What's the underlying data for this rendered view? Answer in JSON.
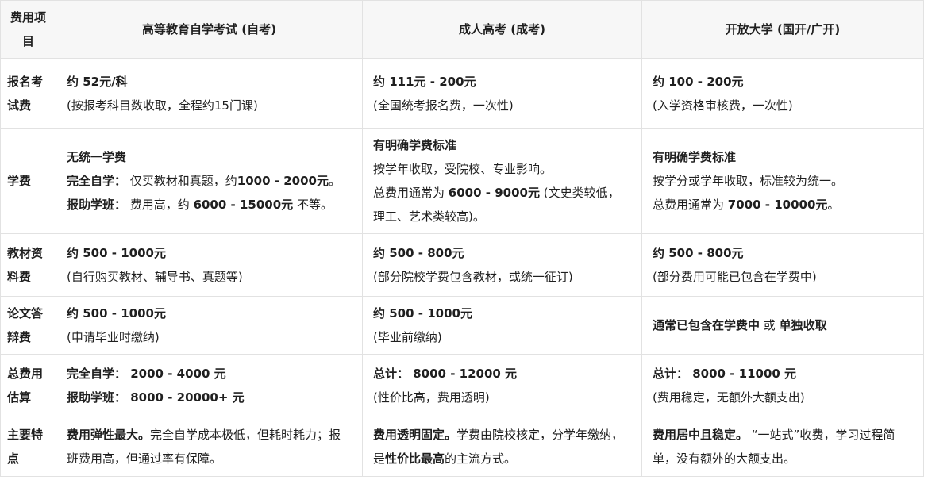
{
  "colors": {
    "header_background": "#f7f7f7",
    "border": "#e2e2e2",
    "text": "#1f1f1f",
    "body_background": "#ffffff"
  },
  "table": {
    "columns": [
      "费用项目",
      "高等教育自学考试 (自考)",
      "成人高考 (成考)",
      "开放大学 (国开/广开)"
    ],
    "rows": [
      {
        "item": "报名考试费",
        "cells": [
          [
            [
              {
                "t": "约 52元/科",
                "b": true
              }
            ],
            [
              {
                "t": "(按报考科目数收取，全程约15门课)",
                "b": false
              }
            ]
          ],
          [
            [
              {
                "t": "约 111元 - 200元",
                "b": true
              }
            ],
            [
              {
                "t": "(全国统考报名费，一次性)",
                "b": false
              }
            ]
          ],
          [
            [
              {
                "t": "约 100 - 200元",
                "b": true
              }
            ],
            [
              {
                "t": "(入学资格审核费，一次性)",
                "b": false
              }
            ]
          ]
        ]
      },
      {
        "item": "学费",
        "cells": [
          [
            [
              {
                "t": "无统一学费",
                "b": true
              }
            ],
            [
              {
                "t": "完全自学：",
                "b": true
              },
              {
                "t": " 仅买教材和真题，约",
                "b": false
              },
              {
                "t": "1000 - 2000元",
                "b": true
              },
              {
                "t": "。",
                "b": false
              }
            ],
            [
              {
                "t": "报助学班：",
                "b": true
              },
              {
                "t": " 费用高，约 ",
                "b": false
              },
              {
                "t": "6000 - 15000元",
                "b": true
              },
              {
                "t": " 不等。",
                "b": false
              }
            ]
          ],
          [
            [
              {
                "t": "有明确学费标准",
                "b": true
              }
            ],
            [
              {
                "t": "按学年收取，受院校、专业影响。",
                "b": false
              }
            ],
            [
              {
                "t": "总费用通常为 ",
                "b": false
              },
              {
                "t": "6000 - 9000元",
                "b": true
              },
              {
                "t": " (文史类较低，理工、艺术类较高)。",
                "b": false
              }
            ]
          ],
          [
            [
              {
                "t": "有明确学费标准",
                "b": true
              }
            ],
            [
              {
                "t": "按学分或学年收取，标准较为统一。",
                "b": false
              }
            ],
            [
              {
                "t": "总费用通常为 ",
                "b": false
              },
              {
                "t": "7000 - 10000元",
                "b": true
              },
              {
                "t": "。",
                "b": false
              }
            ]
          ]
        ]
      },
      {
        "item": "教材资料费",
        "cells": [
          [
            [
              {
                "t": "约 500 - 1000元",
                "b": true
              }
            ],
            [
              {
                "t": "(自行购买教材、辅导书、真题等)",
                "b": false
              }
            ]
          ],
          [
            [
              {
                "t": "约 500 - 800元",
                "b": true
              }
            ],
            [
              {
                "t": "(部分院校学费包含教材，或统一征订)",
                "b": false
              }
            ]
          ],
          [
            [
              {
                "t": "约 500 - 800元",
                "b": true
              }
            ],
            [
              {
                "t": "(部分费用可能已包含在学费中)",
                "b": false
              }
            ]
          ]
        ]
      },
      {
        "item": "论文答辩费",
        "cells": [
          [
            [
              {
                "t": "约 500 - 1000元",
                "b": true
              }
            ],
            [
              {
                "t": "(申请毕业时缴纳)",
                "b": false
              }
            ]
          ],
          [
            [
              {
                "t": "约 500 - 1000元",
                "b": true
              }
            ],
            [
              {
                "t": "(毕业前缴纳)",
                "b": false
              }
            ]
          ],
          [
            [
              {
                "t": "通常已包含在学费中",
                "b": true
              },
              {
                "t": " 或 ",
                "b": false
              },
              {
                "t": "单独收取",
                "b": true
              }
            ]
          ]
        ]
      },
      {
        "item": "总费用估算",
        "cells": [
          [
            [
              {
                "t": "完全自学： 2000 - 4000 元",
                "b": true
              }
            ],
            [
              {
                "t": "报助学班： 8000 - 20000+ 元",
                "b": true
              }
            ]
          ],
          [
            [
              {
                "t": "总计： 8000 - 12000 元",
                "b": true
              }
            ],
            [
              {
                "t": "(性价比高，费用透明)",
                "b": false
              }
            ]
          ],
          [
            [
              {
                "t": "总计： 8000 - 11000 元",
                "b": true
              }
            ],
            [
              {
                "t": "(费用稳定，无额外大额支出)",
                "b": false
              }
            ]
          ]
        ]
      },
      {
        "item": "主要特点",
        "cells": [
          [
            [
              {
                "t": "费用弹性最大。",
                "b": true
              },
              {
                "t": "完全自学成本极低，但耗时耗力；报班费用高，但通过率有保障。",
                "b": false
              }
            ]
          ],
          [
            [
              {
                "t": "费用透明固定。",
                "b": true
              },
              {
                "t": "学费由院校核定，分学年缴纳，是",
                "b": false
              },
              {
                "t": "性价比最高",
                "b": true
              },
              {
                "t": "的主流方式。",
                "b": false
              }
            ]
          ],
          [
            [
              {
                "t": "费用居中且稳定。",
                "b": true
              },
              {
                "t": " “一站式”收费，学习过程简单，没有额外的大额支出。",
                "b": false
              }
            ]
          ]
        ]
      }
    ]
  }
}
